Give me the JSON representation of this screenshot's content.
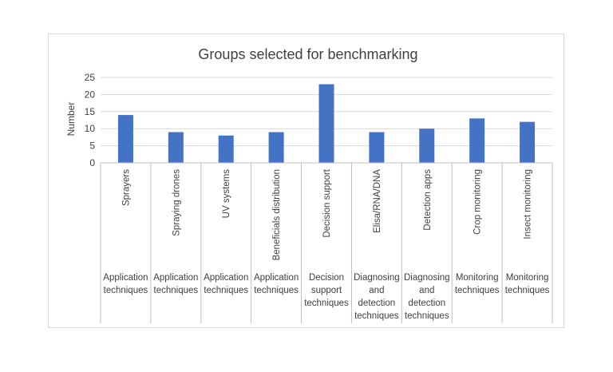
{
  "chart_data": {
    "type": "bar",
    "title": "Groups selected for benchmarking",
    "ylabel": "Number",
    "xlabel": "",
    "ylim": [
      0,
      25
    ],
    "yticks": [
      "0",
      "5",
      "10",
      "15",
      "20",
      "25"
    ],
    "grid": true,
    "legend": "none",
    "bar_color": "#4472c4",
    "categories": [
      "Sprayers",
      "Spraying drones",
      "UV systems",
      "Beneficials distribution",
      "Decision support",
      "Elisa/RNA/DNA",
      "Detection apps",
      "Crop monitoring",
      "Insect monitoring"
    ],
    "groups": [
      [
        "Application",
        "techniques"
      ],
      [
        "Application",
        "techniques"
      ],
      [
        "Application",
        "techniques"
      ],
      [
        "Application",
        "techniques"
      ],
      [
        "Decision",
        "support",
        "techniques"
      ],
      [
        "Diagnosing",
        "and",
        "detection",
        "techniques"
      ],
      [
        "Diagnosing",
        "and",
        "detection",
        "techniques"
      ],
      [
        "Monitoring",
        "techniques"
      ],
      [
        "Monitoring",
        "techniques"
      ]
    ],
    "values": [
      14,
      9,
      8,
      9,
      23,
      9,
      10,
      13,
      12
    ]
  }
}
